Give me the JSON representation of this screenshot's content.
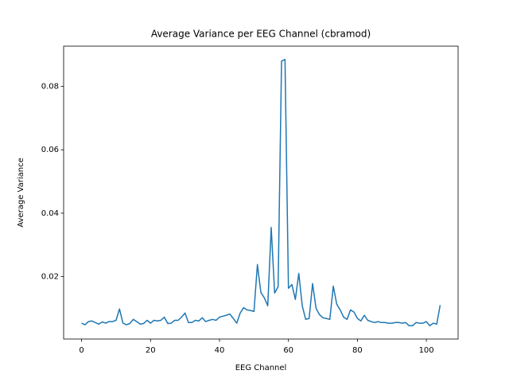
{
  "chart_data": {
    "type": "line",
    "title": "Average Variance per EEG Channel (cbramod)",
    "xlabel": "EEG Channel",
    "ylabel": "Average Variance",
    "x": [
      0,
      1,
      2,
      3,
      4,
      5,
      6,
      7,
      8,
      9,
      10,
      11,
      12,
      13,
      14,
      15,
      16,
      17,
      18,
      19,
      20,
      21,
      22,
      23,
      24,
      25,
      26,
      27,
      28,
      29,
      30,
      31,
      32,
      33,
      34,
      35,
      36,
      37,
      38,
      39,
      40,
      41,
      42,
      43,
      44,
      45,
      46,
      47,
      48,
      49,
      50,
      51,
      52,
      53,
      54,
      55,
      56,
      57,
      58,
      59,
      60,
      61,
      62,
      63,
      64,
      65,
      66,
      67,
      68,
      69,
      70,
      71,
      72,
      73,
      74,
      75,
      76,
      77,
      78,
      79,
      80,
      81,
      82,
      83,
      84,
      85,
      86,
      87,
      88,
      89,
      90,
      91,
      92,
      93,
      94,
      95,
      96,
      97,
      98,
      99,
      100,
      101,
      102,
      103,
      104
    ],
    "series": [
      {
        "color": "#1f77b4",
        "values": [
          0.0053,
          0.0048,
          0.0058,
          0.006,
          0.0055,
          0.005,
          0.0057,
          0.0053,
          0.0058,
          0.0058,
          0.0062,
          0.0098,
          0.0053,
          0.0048,
          0.0052,
          0.0065,
          0.0058,
          0.005,
          0.0052,
          0.0062,
          0.0053,
          0.0062,
          0.006,
          0.0062,
          0.0072,
          0.0052,
          0.0053,
          0.0062,
          0.0062,
          0.0072,
          0.0085,
          0.0055,
          0.0055,
          0.0062,
          0.006,
          0.007,
          0.0058,
          0.0062,
          0.0065,
          0.0062,
          0.0072,
          0.0075,
          0.0078,
          0.0082,
          0.0068,
          0.0053,
          0.0085,
          0.0102,
          0.0095,
          0.0093,
          0.009,
          0.0238,
          0.015,
          0.0133,
          0.0108,
          0.0355,
          0.0148,
          0.0168,
          0.088,
          0.0885,
          0.0163,
          0.0175,
          0.0128,
          0.021,
          0.0108,
          0.0065,
          0.0068,
          0.0178,
          0.01,
          0.008,
          0.007,
          0.0068,
          0.0065,
          0.017,
          0.0113,
          0.0095,
          0.0072,
          0.0065,
          0.0095,
          0.0088,
          0.0068,
          0.006,
          0.0078,
          0.0062,
          0.0058,
          0.0055,
          0.0058,
          0.0055,
          0.0055,
          0.0053,
          0.0053,
          0.0055,
          0.0055,
          0.0053,
          0.0055,
          0.0045,
          0.0045,
          0.0055,
          0.0053,
          0.0053,
          0.0058,
          0.0045,
          0.0053,
          0.005,
          0.011
        ]
      }
    ],
    "xlim": [
      -5.2,
      109.2
    ],
    "ylim": [
      0.0003,
      0.0927
    ],
    "xticks": [
      0,
      20,
      40,
      60,
      80,
      100
    ],
    "yticks": [
      0.02,
      0.04,
      0.06,
      0.08
    ],
    "grid": false
  }
}
